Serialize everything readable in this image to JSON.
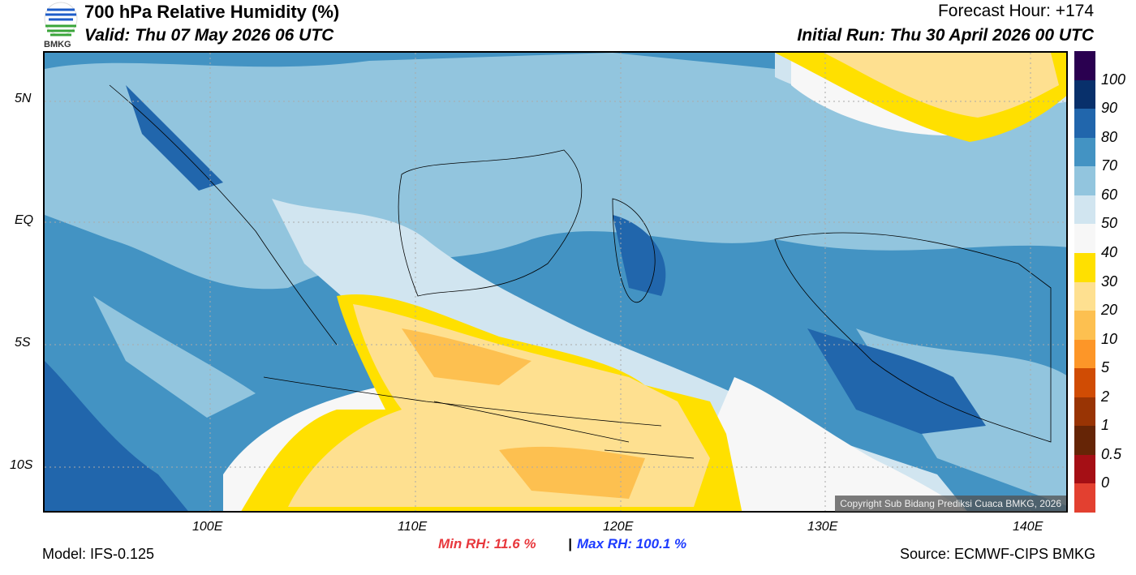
{
  "header": {
    "title": "700 hPa Relative Humidity (%)",
    "valid": "Valid: Thu 07 May 2026 06 UTC",
    "forecast_hour": "Forecast Hour: +174",
    "initial_run": "Initial Run: Thu 30 April 2026 00 UTC",
    "logo_text": "BMKG"
  },
  "map": {
    "lat_labels": [
      "5N",
      "EQ",
      "5S",
      "10S"
    ],
    "lon_labels": [
      "100E",
      "110E",
      "120E",
      "130E",
      "140E"
    ],
    "copyright": "Copyright Sub Bidang Prediksi Cuaca BMKG, 2026"
  },
  "colorbar": {
    "labels": [
      "100",
      "90",
      "80",
      "70",
      "60",
      "50",
      "40",
      "30",
      "20",
      "10",
      "5",
      "2",
      "1",
      "0.5",
      "0"
    ],
    "colors": [
      "#2a0050",
      "#08306b",
      "#2166ac",
      "#4393c3",
      "#92c5de",
      "#d1e5f0",
      "#f7f7f7",
      "#ffe000",
      "#fee090",
      "#fdc050",
      "#fd9628",
      "#d04c04",
      "#993404",
      "#662506",
      "#a50f15",
      "#e34030"
    ]
  },
  "footer": {
    "model": "Model: IFS-0.125",
    "min_rh": "Min RH:  11.6 %",
    "sep": "|",
    "max_rh": "Max RH: 100.1 %",
    "source": "Source: ECMWF-CIPS BMKG"
  }
}
